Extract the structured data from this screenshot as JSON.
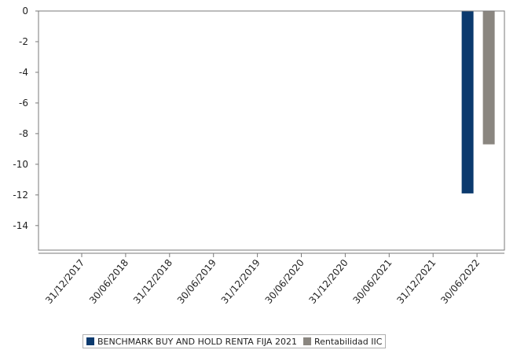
{
  "chart_data": {
    "type": "bar",
    "title": "",
    "xlabel": "",
    "ylabel": "",
    "ylim": [
      -15.6,
      0
    ],
    "yticks": [
      0,
      -2,
      -4,
      -6,
      -8,
      -10,
      -12,
      -14
    ],
    "categories": [
      "31/12/2017",
      "30/06/2018",
      "31/12/2018",
      "30/06/2019",
      "31/12/2019",
      "30/06/2020",
      "31/12/2020",
      "30/06/2021",
      "31/12/2021",
      "30/06/2022"
    ],
    "series": [
      {
        "name": "BENCHMARK BUY AND HOLD RENTA FIJA 2021",
        "color": "#0b3a6e",
        "values": [
          null,
          null,
          null,
          null,
          null,
          null,
          null,
          null,
          null,
          -11.9
        ]
      },
      {
        "name": "Rentabilidad IIC",
        "color": "#8a8680",
        "values": [
          null,
          null,
          null,
          null,
          null,
          null,
          null,
          null,
          null,
          -8.7
        ]
      }
    ],
    "grid": false,
    "legend_position": "bottom"
  }
}
